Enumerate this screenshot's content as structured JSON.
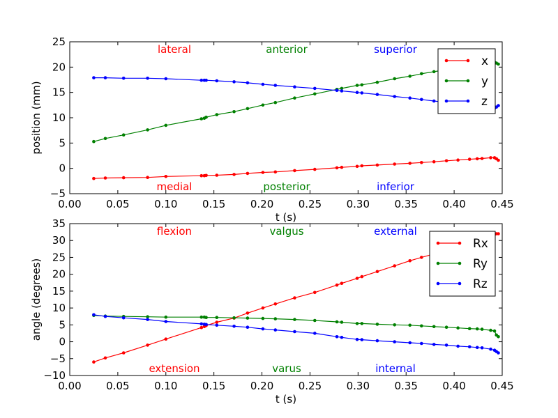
{
  "chart_data": [
    {
      "type": "line",
      "xlabel": "t (s)",
      "ylabel": "position (mm)",
      "xlim": [
        0.0,
        0.45
      ],
      "ylim": [
        -5,
        25
      ],
      "xticks": [
        "0.00",
        "0.05",
        "0.10",
        "0.15",
        "0.20",
        "0.25",
        "0.30",
        "0.35",
        "0.40",
        "0.45"
      ],
      "yticks": [
        "−5",
        "0",
        "5",
        "10",
        "15",
        "20",
        "25"
      ],
      "grid": false,
      "legend_position": "top-right",
      "annotations": [
        {
          "text": "lateral",
          "color": "#ff0000",
          "position": "top-left"
        },
        {
          "text": "anterior",
          "color": "#008000",
          "position": "top-center"
        },
        {
          "text": "superior",
          "color": "#0000ff",
          "position": "top-right"
        },
        {
          "text": "medial",
          "color": "#ff0000",
          "position": "bottom-left"
        },
        {
          "text": "posterior",
          "color": "#008000",
          "position": "bottom-center"
        },
        {
          "text": "inferior",
          "color": "#0000ff",
          "position": "bottom-right"
        }
      ],
      "x": [
        0.025,
        0.037,
        0.056,
        0.081,
        0.1,
        0.137,
        0.14,
        0.142,
        0.153,
        0.171,
        0.185,
        0.201,
        0.214,
        0.234,
        0.255,
        0.278,
        0.283,
        0.299,
        0.304,
        0.32,
        0.338,
        0.354,
        0.366,
        0.379,
        0.392,
        0.404,
        0.416,
        0.424,
        0.429,
        0.438,
        0.442,
        0.444,
        0.446
      ],
      "series": [
        {
          "name": "x",
          "color": "#ff0000",
          "values": [
            -2.0,
            -1.9,
            -1.85,
            -1.8,
            -1.6,
            -1.45,
            -1.45,
            -1.4,
            -1.35,
            -1.2,
            -1.0,
            -0.8,
            -0.7,
            -0.45,
            -0.2,
            0.1,
            0.2,
            0.4,
            0.5,
            0.65,
            0.85,
            1.0,
            1.15,
            1.3,
            1.5,
            1.65,
            1.8,
            1.9,
            1.95,
            2.1,
            2.1,
            1.9,
            1.6
          ]
        },
        {
          "name": "y",
          "color": "#008000",
          "values": [
            5.3,
            5.9,
            6.6,
            7.6,
            8.5,
            9.8,
            9.9,
            10.1,
            10.6,
            11.2,
            11.8,
            12.5,
            13.0,
            13.9,
            14.7,
            15.6,
            15.8,
            16.4,
            16.5,
            17.0,
            17.7,
            18.2,
            18.7,
            19.1,
            19.5,
            19.9,
            20.2,
            20.5,
            20.6,
            20.9,
            21.0,
            20.8,
            20.6
          ]
        },
        {
          "name": "z",
          "color": "#0000ff",
          "values": [
            17.9,
            17.9,
            17.8,
            17.8,
            17.7,
            17.4,
            17.4,
            17.4,
            17.3,
            17.1,
            16.9,
            16.6,
            16.4,
            16.1,
            15.8,
            15.4,
            15.3,
            15.0,
            14.9,
            14.6,
            14.2,
            13.9,
            13.6,
            13.3,
            13.0,
            12.8,
            12.5,
            12.3,
            12.2,
            12.0,
            11.9,
            12.1,
            12.4
          ]
        }
      ]
    },
    {
      "type": "line",
      "xlabel": "t (s)",
      "ylabel": "angle (degrees)",
      "xlim": [
        0.0,
        0.45
      ],
      "ylim": [
        -10,
        35
      ],
      "xticks": [
        "0.00",
        "0.05",
        "0.10",
        "0.15",
        "0.20",
        "0.25",
        "0.30",
        "0.35",
        "0.40",
        "0.45"
      ],
      "yticks": [
        "−10",
        "−5",
        "0",
        "5",
        "10",
        "15",
        "20",
        "25",
        "30",
        "35"
      ],
      "grid": false,
      "legend_position": "top-right",
      "annotations": [
        {
          "text": "flexion",
          "color": "#ff0000",
          "position": "top-left"
        },
        {
          "text": "valgus",
          "color": "#008000",
          "position": "top-center"
        },
        {
          "text": "external",
          "color": "#0000ff",
          "position": "top-right"
        },
        {
          "text": "extension",
          "color": "#ff0000",
          "position": "bottom-left"
        },
        {
          "text": "varus",
          "color": "#008000",
          "position": "bottom-center"
        },
        {
          "text": "internal",
          "color": "#0000ff",
          "position": "bottom-right"
        }
      ],
      "x": [
        0.025,
        0.037,
        0.056,
        0.081,
        0.1,
        0.137,
        0.14,
        0.142,
        0.153,
        0.171,
        0.185,
        0.201,
        0.214,
        0.234,
        0.255,
        0.278,
        0.283,
        0.299,
        0.304,
        0.32,
        0.338,
        0.354,
        0.366,
        0.379,
        0.392,
        0.404,
        0.416,
        0.424,
        0.429,
        0.438,
        0.442,
        0.444,
        0.446
      ],
      "series": [
        {
          "name": "Rx",
          "color": "#ff0000",
          "values": [
            -6.0,
            -4.8,
            -3.3,
            -1.0,
            0.8,
            4.2,
            4.5,
            4.8,
            5.8,
            7.0,
            8.5,
            10.0,
            11.2,
            13.0,
            14.6,
            16.8,
            17.3,
            18.8,
            19.3,
            20.8,
            22.5,
            24.0,
            25.0,
            26.0,
            27.3,
            28.4,
            29.5,
            30.3,
            30.7,
            31.5,
            31.8,
            32.0,
            32.0
          ]
        },
        {
          "name": "Ry",
          "color": "#008000",
          "values": [
            7.8,
            7.6,
            7.5,
            7.4,
            7.3,
            7.3,
            7.3,
            7.2,
            7.2,
            7.1,
            7.0,
            6.9,
            6.8,
            6.6,
            6.3,
            5.9,
            5.8,
            5.4,
            5.4,
            5.2,
            5.0,
            4.9,
            4.7,
            4.5,
            4.3,
            4.1,
            3.9,
            3.8,
            3.7,
            3.4,
            3.2,
            2.0,
            1.5
          ]
        },
        {
          "name": "Rz",
          "color": "#0000ff",
          "values": [
            8.0,
            7.5,
            7.1,
            6.6,
            6.0,
            5.3,
            5.2,
            5.1,
            4.9,
            4.6,
            4.3,
            3.8,
            3.5,
            3.0,
            2.5,
            1.5,
            1.3,
            0.7,
            0.6,
            0.3,
            0.0,
            -0.3,
            -0.5,
            -0.8,
            -1.0,
            -1.3,
            -1.5,
            -1.7,
            -1.8,
            -2.2,
            -2.5,
            -2.9,
            -3.3
          ]
        }
      ]
    }
  ]
}
